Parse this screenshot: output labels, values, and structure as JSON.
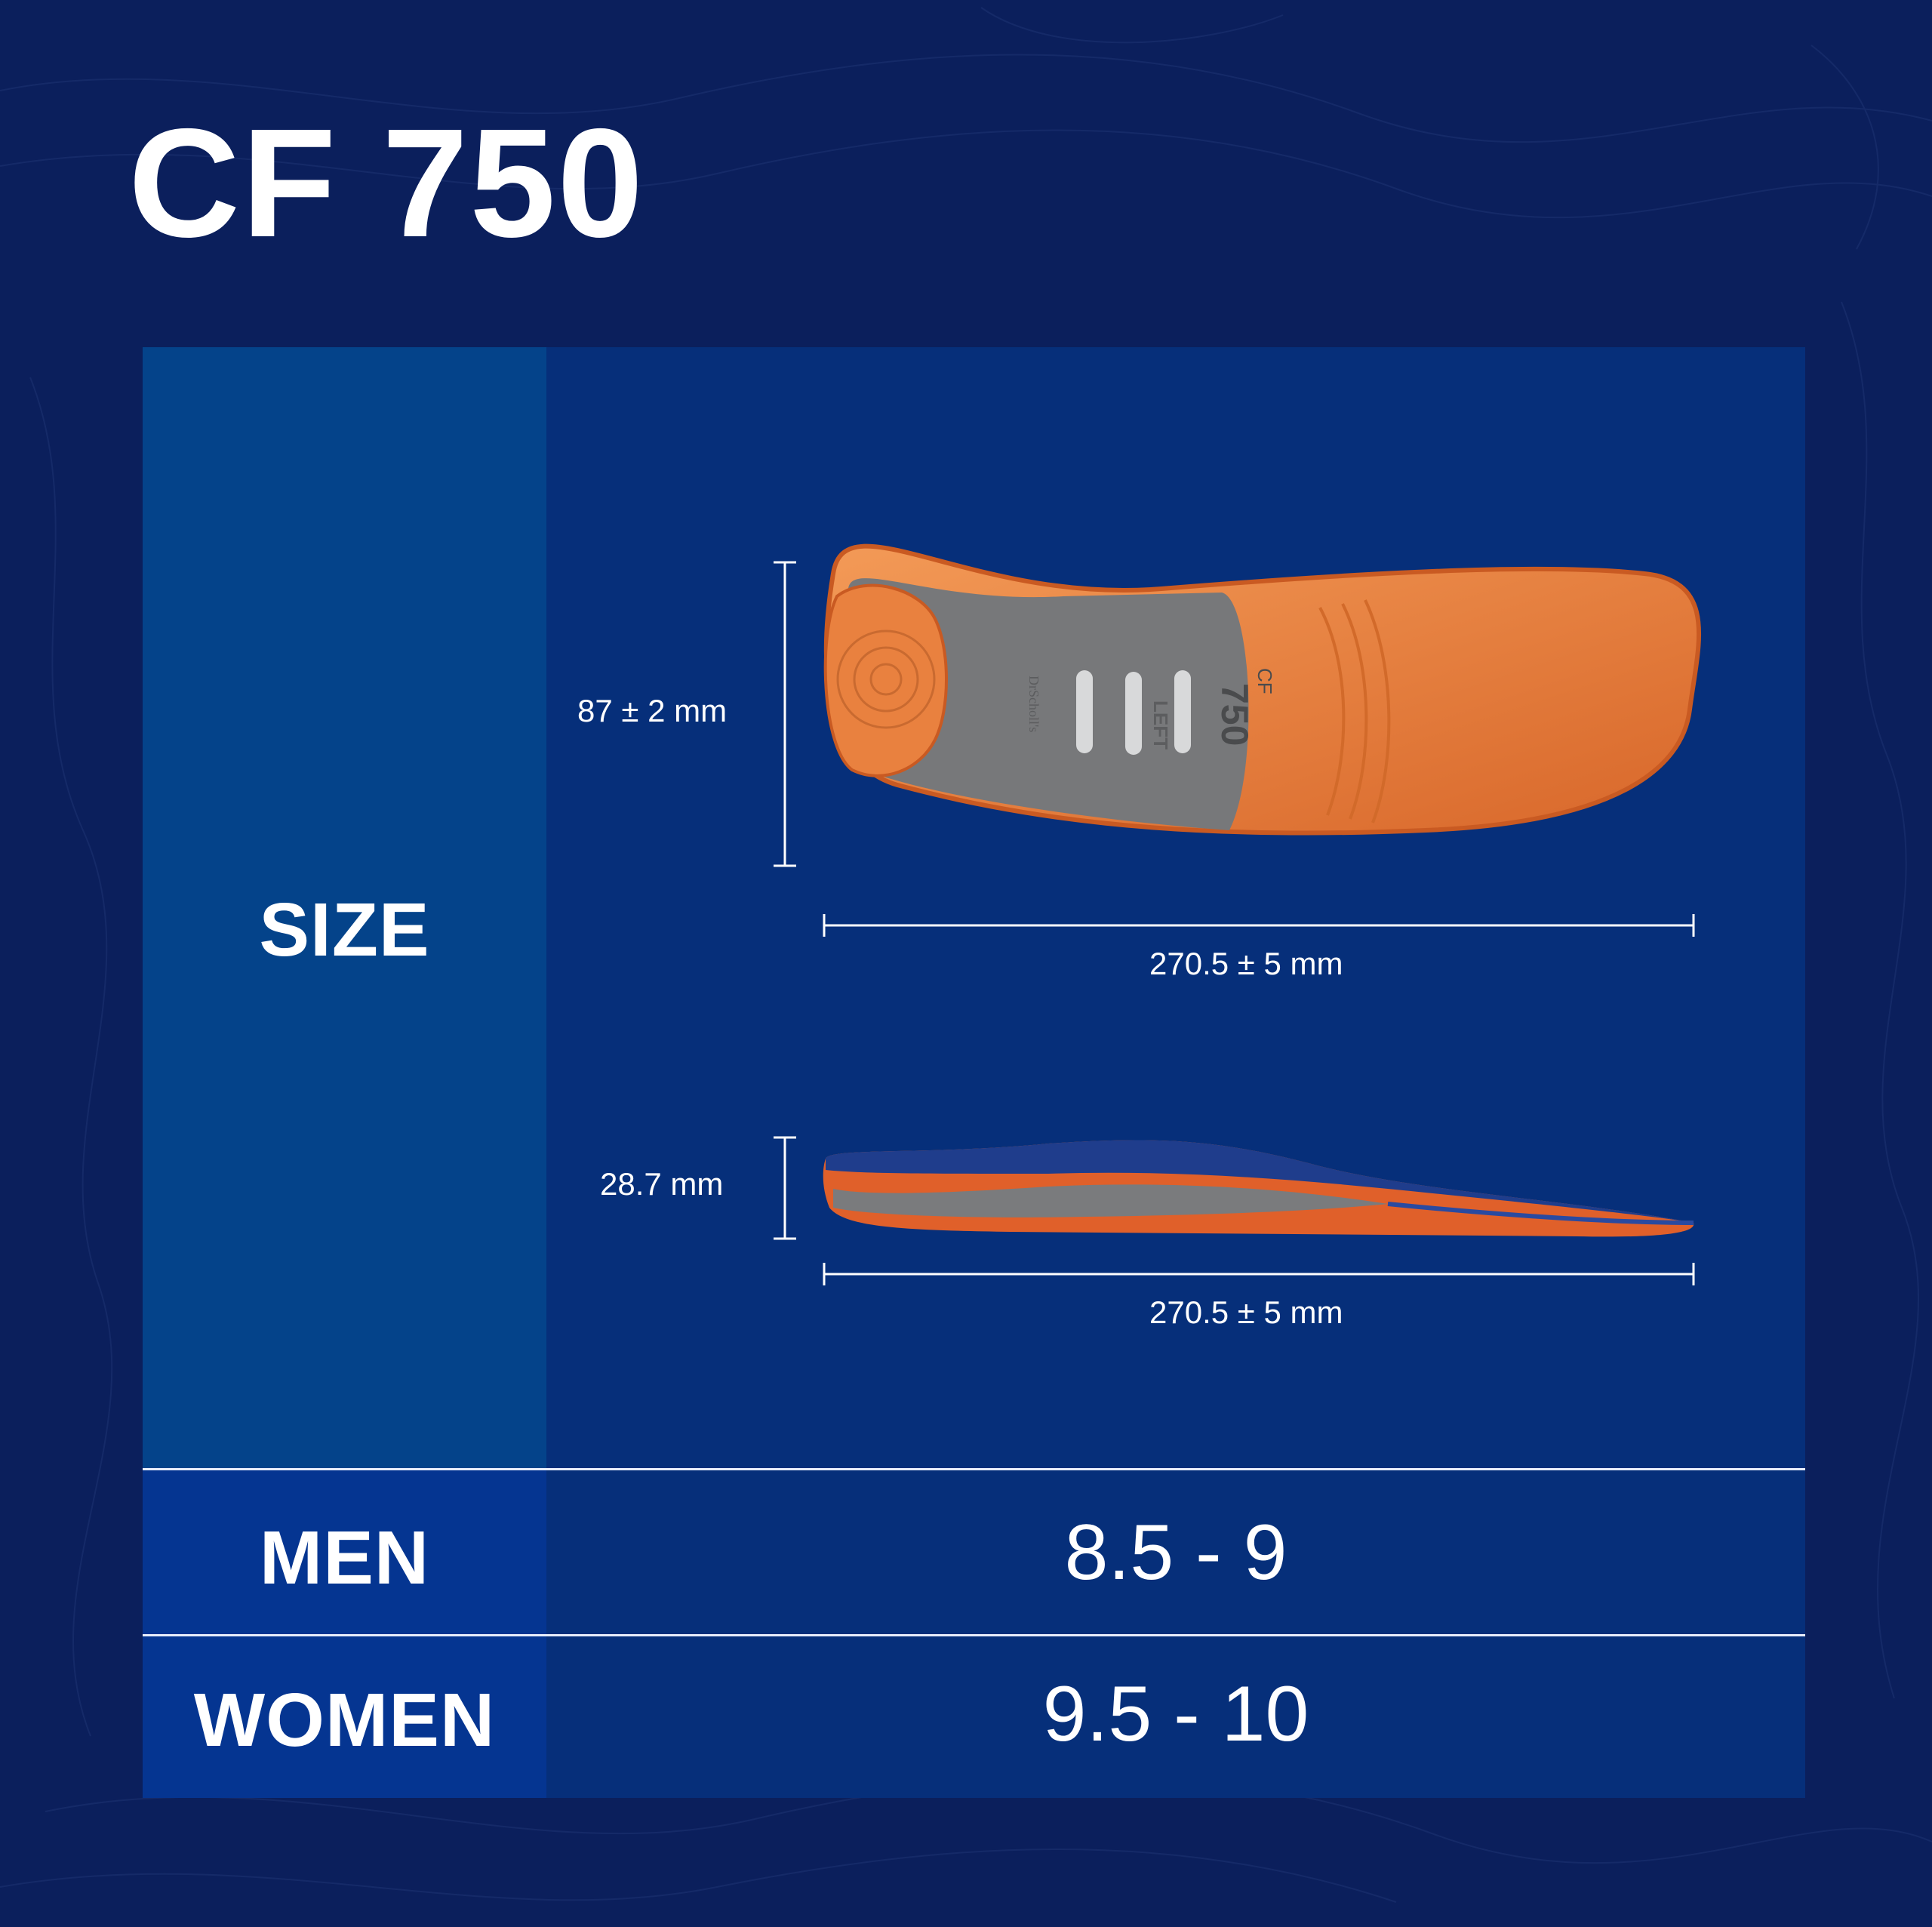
{
  "product": {
    "title": "CF 750"
  },
  "size_section": {
    "label": "SIZE",
    "top_view": {
      "width_label": "87 ± 2 mm",
      "length_label": "270.5 ± 5 mm",
      "insole_markings": {
        "model_small": "CF",
        "model_number": "750",
        "side": "LEFT",
        "brand": "DrScholl's"
      }
    },
    "side_view": {
      "height_label": "28.7 mm",
      "length_label": "270.5 ± 5 mm"
    }
  },
  "sizes": [
    {
      "label": "MEN",
      "value": "8.5 - 9"
    },
    {
      "label": "WOMEN",
      "value": "9.5 - 10"
    }
  ],
  "colors": {
    "background": "#0b1f5c",
    "panel": "#062f7a",
    "size_column": "#04438a",
    "size_rows_column": "#053591",
    "insole_orange": "#e9813f",
    "insole_gray": "#77787a"
  }
}
